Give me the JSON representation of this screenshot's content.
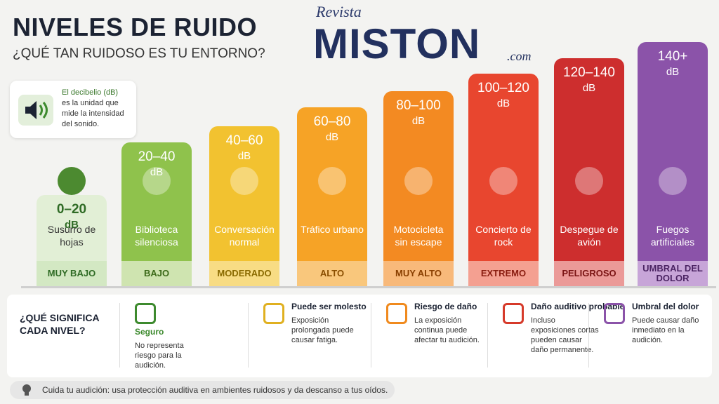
{
  "header": {
    "title": "NIVELES DE RUIDO",
    "subtitle": "¿QUÉ TAN RUIDOSO ES TU ENTORNO?"
  },
  "logo": {
    "kicker": "Revista",
    "name": "MISTON",
    "suffix": ".com"
  },
  "info": {
    "term": "El decibelio (dB)",
    "text": "es la unidad que mide la intensidad del sonido."
  },
  "levels": [
    {
      "range": "0–20",
      "unit": "dB",
      "example": "Susurro de hojas",
      "level": "MUY BAJO"
    },
    {
      "range": "20–40",
      "unit": "dB",
      "example": "Biblioteca silenciosa",
      "level": "BAJO"
    },
    {
      "range": "40–60",
      "unit": "dB",
      "example": "Conversación normal",
      "level": "MODERADO"
    },
    {
      "range": "60–80",
      "unit": "dB",
      "example": "Tráfico urbano",
      "level": "ALTO"
    },
    {
      "range": "80–100",
      "unit": "dB",
      "example": "Motocicleta sin escape",
      "level": "MUY ALTO"
    },
    {
      "range": "100–120",
      "unit": "dB",
      "example": "Concierto de rock",
      "level": "EXTREMO"
    },
    {
      "range": "120–140",
      "unit": "dB",
      "example": "Despegue de avión",
      "level": "PELIGROSO"
    },
    {
      "range": "140+",
      "unit": "dB",
      "example": "Fuegos artificiales",
      "level": "UMBRAL DEL DOLOR"
    }
  ],
  "legend": {
    "question": "¿QUÉ SIGNIFICA CADA NIVEL?",
    "items": [
      {
        "title": "Seguro",
        "text": "No representa riesgo para la audición."
      },
      {
        "title": "Puede ser molesto",
        "text": "Exposición prolongada puede causar fatiga."
      },
      {
        "title": "Riesgo de daño",
        "text": "La exposición continua puede afectar tu audición."
      },
      {
        "title": "Daño auditivo probable",
        "text": "Incluso exposiciones cortas pueden causar daño permanente."
      },
      {
        "title": "Umbral del dolor",
        "text": "Puede causar daño inmediato en la audición."
      }
    ]
  },
  "footer": {
    "tip": "Cuida tu audición: usa protección auditiva en ambientes ruidosos y da descanso a tus oídos."
  }
}
